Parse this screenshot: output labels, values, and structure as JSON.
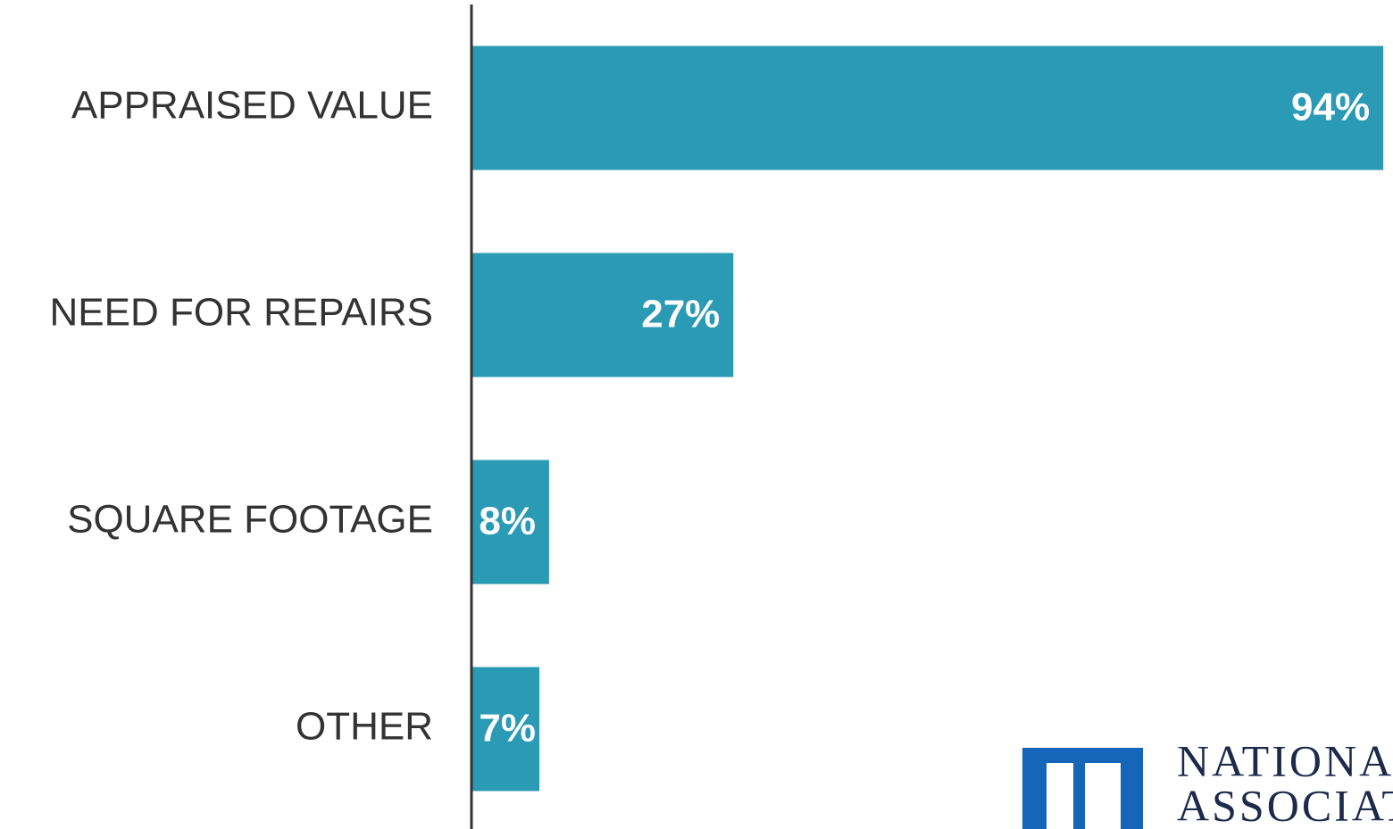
{
  "chart_data": {
    "type": "bar",
    "orientation": "horizontal",
    "categories": [
      "APPRAISED VALUE",
      "NEED FOR REPAIRS",
      "SQUARE FOOTAGE",
      "OTHER"
    ],
    "values": [
      94,
      27,
      8,
      7
    ],
    "value_labels": [
      "94%",
      "27%",
      "8%",
      "7%"
    ],
    "color": "#2b9ab5",
    "xlim": [
      0,
      95
    ]
  },
  "logo": {
    "line1": "NATIONAL",
    "line2": "ASSOCIATION"
  }
}
